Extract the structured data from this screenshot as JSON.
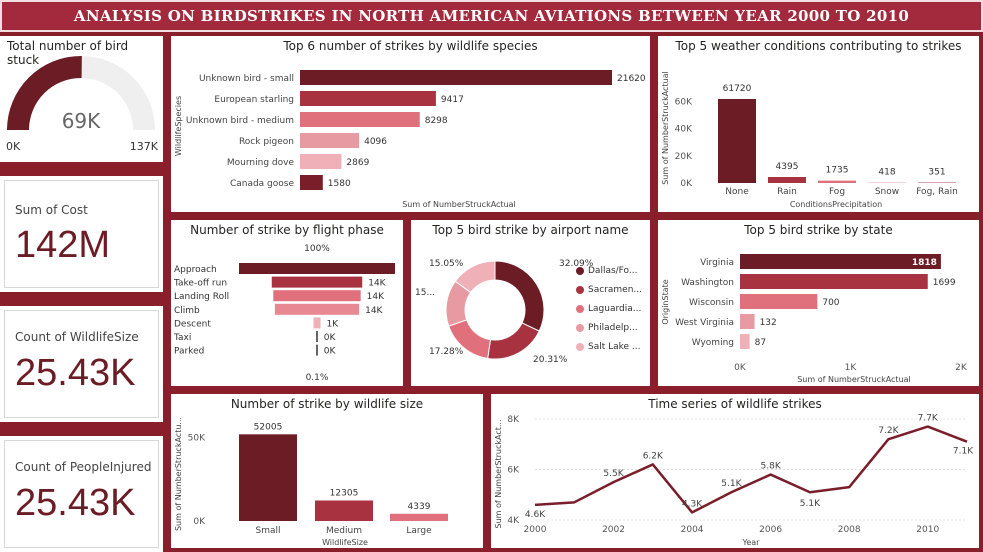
{
  "title": "ANALYSIS ON BIRDSTRIKES IN NORTH AMERICAN AVIATIONS BETWEEN YEAR 2000 TO 2010",
  "colors": {
    "dark": "#6b1c24",
    "mid": "#a83240",
    "light": "#e0707c",
    "pale": "#f0b0b8",
    "palest": "#f6ccd2",
    "page_bg": "#8b1e2b"
  },
  "gauge": {
    "title": "Total number of bird stuck",
    "value_label": "69K",
    "min_label": "0K",
    "max_label": "137K",
    "value": 69,
    "max": 137
  },
  "kpis": [
    {
      "label": "Sum of Cost",
      "value": "142M"
    },
    {
      "label": "Count of WildlifeSize",
      "value": "25.43K"
    },
    {
      "label": "Count of PeopleInjured",
      "value": "25.43K"
    }
  ],
  "chart_data": [
    {
      "id": "species",
      "type": "bar",
      "orientation": "horizontal",
      "title": "Top 6 number of strikes by wildlife species",
      "xlabel": "Sum of NumberStruckActual",
      "ylabel": "WildlifeSpecies",
      "categories": [
        "Unknown bird - small",
        "European starling",
        "Unknown bird - medium",
        "Rock pigeon",
        "Mourning dove",
        "Canada goose"
      ],
      "values": [
        21620,
        9417,
        8298,
        4096,
        2869,
        1580
      ],
      "data_labels": [
        "21620",
        "9417",
        "8298",
        "4096",
        "2869",
        "1580"
      ],
      "colors": [
        "#6b1c24",
        "#a83240",
        "#e0707c",
        "#e89aa3",
        "#f0b0b8",
        "#7a1e2a"
      ],
      "xlim": [
        0,
        21620
      ]
    },
    {
      "id": "weather",
      "type": "bar",
      "title": "Top 5 weather conditions contributing to strikes",
      "xlabel": "ConditionsPrecipitation",
      "ylabel": "Sum of NumberStruckActual",
      "categories": [
        "None",
        "Rain",
        "Fog",
        "Snow",
        "Fog, Rain"
      ],
      "values": [
        61720,
        4395,
        1735,
        418,
        351
      ],
      "data_labels": [
        "61720",
        "4395",
        "1735",
        "418",
        "351"
      ],
      "colors": [
        "#6b1c24",
        "#a83240",
        "#e0707c",
        "#f0b0b8",
        "#b04050"
      ],
      "yticks": [
        "0K",
        "20K",
        "40K",
        "60K"
      ],
      "ytick_values": [
        0,
        20000,
        40000,
        60000
      ],
      "ylim": [
        0,
        72000
      ]
    },
    {
      "id": "phase",
      "type": "bar",
      "subtype": "funnel",
      "title": "Number of strike by flight phase",
      "categories": [
        "Approach",
        "Take-off run",
        "Landing Roll",
        "Climb",
        "Descent",
        "Taxi",
        "Parked"
      ],
      "values": [
        100,
        58,
        56,
        54,
        4.5,
        0.6,
        0.1
      ],
      "data_labels": [
        "",
        "14K",
        "14K",
        "14K",
        "1K",
        "0K",
        "0K"
      ],
      "colors": [
        "#6b1c24",
        "#a83240",
        "#e0707c",
        "#e88892",
        "#f0b0b8",
        "#333333",
        "#333333"
      ],
      "top_label": "100%",
      "bottom_label": "0.1%"
    },
    {
      "id": "airport",
      "type": "pie",
      "subtype": "donut",
      "title": "Top 5 bird strike by airport name",
      "labels": [
        "Dallas/Fo...",
        "Sacramen...",
        "Laguardia...",
        "Philadelp...",
        "Salt Lake ..."
      ],
      "values": [
        32.09,
        20.31,
        17.28,
        15.27,
        15.05
      ],
      "data_labels": [
        "32.09%",
        "20.31%",
        "17.28%",
        "15...",
        "15.05%"
      ],
      "colors": [
        "#6b1c24",
        "#a83240",
        "#e0707c",
        "#e89aa3",
        "#f0b0b8"
      ]
    },
    {
      "id": "state",
      "type": "bar",
      "orientation": "horizontal",
      "title": "Top 5 bird strike by state",
      "xlabel": "Sum of NumberStruckActual",
      "ylabel": "OriginState",
      "categories": [
        "Virginia",
        "Washington",
        "Wisconsin",
        "West Virginia",
        "Wyoming"
      ],
      "values": [
        1818,
        1699,
        700,
        132,
        87
      ],
      "data_labels": [
        "1818",
        "1699",
        "700",
        "132",
        "87"
      ],
      "colors": [
        "#6b1c24",
        "#a83240",
        "#e0707c",
        "#e89aa3",
        "#f0b0b8"
      ],
      "xticks": [
        "0K",
        "1K",
        "2K"
      ],
      "xtick_values": [
        0,
        1000,
        2000
      ],
      "xlim": [
        0,
        2000
      ]
    },
    {
      "id": "size",
      "type": "bar",
      "title": "Number of strike by wildlife size",
      "xlabel": "WildlifeSize",
      "ylabel": "Sum of NumberStruckActu...",
      "categories": [
        "Small",
        "Medium",
        "Large"
      ],
      "values": [
        52005,
        12305,
        4339
      ],
      "data_labels": [
        "52005",
        "12305",
        "4339"
      ],
      "colors": [
        "#6b1c24",
        "#a83240",
        "#e0707c"
      ],
      "yticks": [
        "0K",
        "50K"
      ],
      "ytick_values": [
        0,
        50000
      ],
      "ylim": [
        0,
        60000
      ]
    },
    {
      "id": "timeseries",
      "type": "line",
      "title": "Time series of wildlife strikes",
      "xlabel": "Year",
      "ylabel": "Sum of NumberStruckAct...",
      "x": [
        2000,
        2001,
        2002,
        2003,
        2004,
        2005,
        2006,
        2007,
        2008,
        2009,
        2010,
        2011
      ],
      "values": [
        4600,
        4700,
        5500,
        6200,
        4300,
        5100,
        5800,
        5100,
        5300,
        7200,
        7700,
        7100
      ],
      "data_labels": [
        "4.6K",
        "",
        "5.5K",
        "6.2K",
        "4.3K",
        "5.1K",
        "5.8K",
        "5.1K",
        "",
        "7.2K",
        "7.7K",
        "7.1K"
      ],
      "xticks": [
        "2000",
        "2002",
        "2004",
        "2006",
        "2008",
        "2010"
      ],
      "xtick_values": [
        2000,
        2002,
        2004,
        2006,
        2008,
        2010
      ],
      "yticks": [
        "4K",
        "6K",
        "8K"
      ],
      "ytick_values": [
        4000,
        6000,
        8000
      ],
      "xlim": [
        2000,
        2011
      ],
      "ylim": [
        4000,
        8000
      ],
      "color": "#7a1e2a"
    }
  ]
}
